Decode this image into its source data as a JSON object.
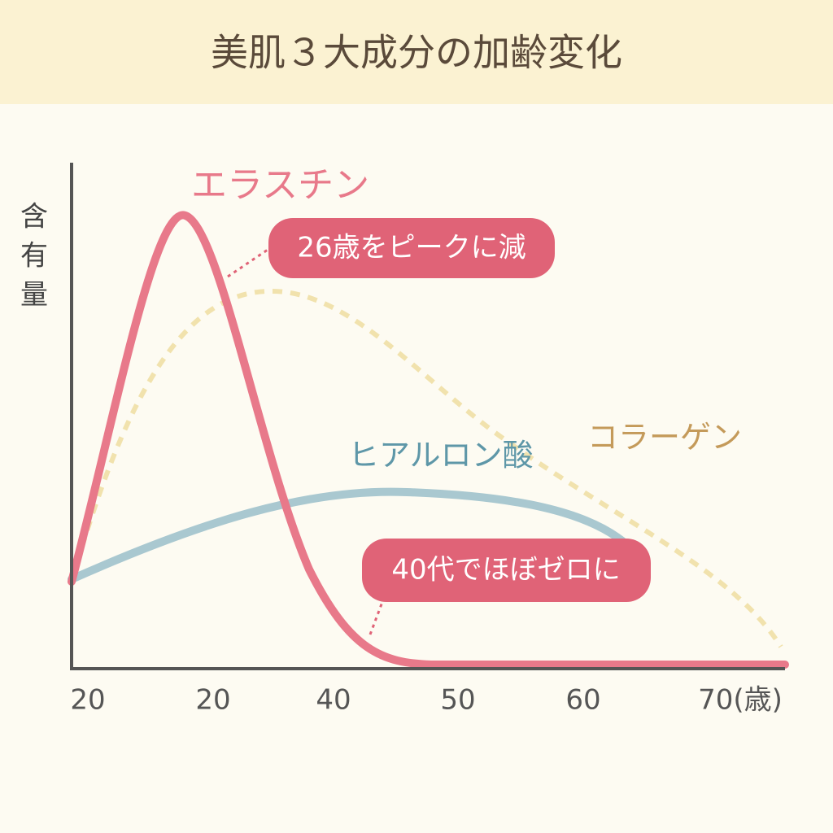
{
  "chart_data": {
    "type": "line",
    "title": "美肌３大成分の加齢変化",
    "y_label": [
      "含",
      "有",
      "量"
    ],
    "categories": [
      "20",
      "20",
      "40",
      "50",
      "60",
      "70(歳)"
    ],
    "series": [
      {
        "name": "エラスチン",
        "color": "#e8798a"
      },
      {
        "name": "コラーゲン",
        "color": "#c49a5a",
        "line_color": "#f1e2ad"
      },
      {
        "name": "ヒアルロン酸",
        "color": "#5e97a8",
        "line_color": "#a9c8d0"
      }
    ],
    "annotations": [
      "26歳をピークに減",
      "40代でほぼゼロに"
    ],
    "annotation_color": "#e06377"
  }
}
